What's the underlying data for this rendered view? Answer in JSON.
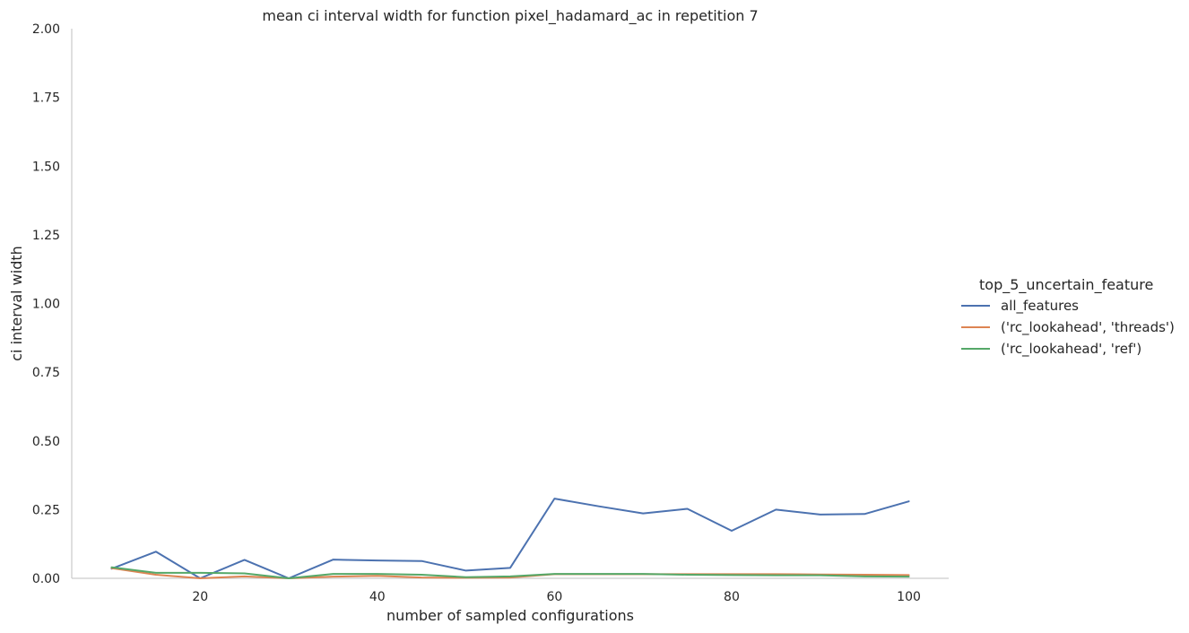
{
  "chart_data": {
    "type": "line",
    "title": "mean ci interval width for function pixel_hadamard_ac in repetition 7",
    "xlabel": "number of sampled configurations",
    "ylabel": "ci interval width",
    "xlim": [
      5.5,
      104.5
    ],
    "ylim": [
      0,
      2
    ],
    "x_ticks": [
      20,
      40,
      60,
      80,
      100
    ],
    "y_ticks": [
      0.0,
      0.25,
      0.5,
      0.75,
      1.0,
      1.25,
      1.5,
      1.75,
      2.0
    ],
    "y_tick_labels": [
      "0.00",
      "0.25",
      "0.50",
      "0.75",
      "1.00",
      "1.25",
      "1.50",
      "1.75",
      "2.00"
    ],
    "x_tick_labels": [
      "20",
      "40",
      "60",
      "80",
      "100"
    ],
    "grid": false,
    "legend": {
      "title": "top_5_uncertain_feature",
      "placement": "right"
    },
    "x": [
      10,
      15,
      20,
      25,
      30,
      35,
      40,
      45,
      50,
      55,
      60,
      65,
      70,
      75,
      80,
      85,
      90,
      95,
      100
    ],
    "series": [
      {
        "name": "all_features",
        "color": "#4c72b0",
        "values": [
          0.035,
          0.097,
          0.0,
          0.067,
          0.0,
          0.068,
          0.065,
          0.063,
          0.028,
          0.038,
          0.29,
          0.262,
          0.236,
          0.253,
          0.173,
          0.25,
          0.232,
          0.234,
          0.28
        ]
      },
      {
        "name": "('rc_lookahead', 'threads')",
        "color": "#dd8452",
        "values": [
          0.037,
          0.013,
          0.0,
          0.007,
          0.0,
          0.006,
          0.009,
          0.003,
          0.002,
          0.003,
          0.015,
          0.015,
          0.015,
          0.015,
          0.015,
          0.015,
          0.014,
          0.013,
          0.012
        ]
      },
      {
        "name": "('rc_lookahead', 'ref')",
        "color": "#55a868",
        "values": [
          0.04,
          0.02,
          0.02,
          0.018,
          0.0,
          0.016,
          0.016,
          0.013,
          0.004,
          0.007,
          0.016,
          0.016,
          0.016,
          0.013,
          0.012,
          0.011,
          0.011,
          0.007,
          0.006
        ]
      }
    ]
  }
}
